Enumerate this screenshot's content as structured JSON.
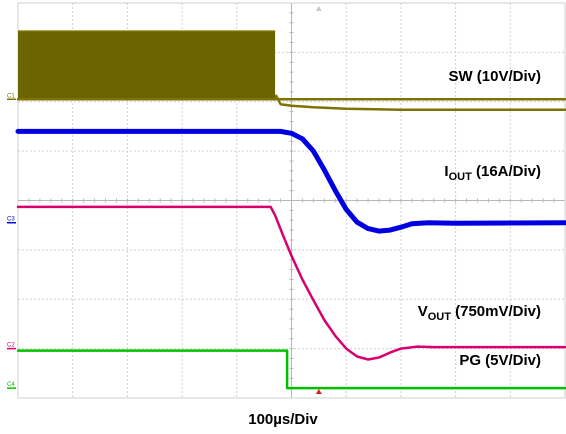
{
  "chart_data": {
    "type": "line",
    "title": "",
    "x_divisions": 10,
    "y_divisions": 8,
    "timebase_label": "100µs/Div",
    "trigger_time_div": 5.5,
    "grid": true,
    "series": [
      {
        "name": "SW (10V/Div)",
        "label_main": "SW (10V/Div)",
        "label_sub": "",
        "label_tail": "",
        "channel_marker": "C1",
        "color": "#7f7300",
        "fill_color": "#6b6400",
        "ground_div": 6.05,
        "points": [
          [
            0,
            6.05
          ],
          [
            10,
            6.05
          ]
        ],
        "switching_band": {
          "x_start": 0,
          "x_end": 4.7,
          "y_low": 6.05,
          "y_high": 7.43
        },
        "decay": [
          [
            4.7,
            6.05
          ],
          [
            4.72,
            6.12
          ],
          [
            4.8,
            5.95
          ],
          [
            5.0,
            5.92
          ],
          [
            5.4,
            5.89
          ],
          [
            6.0,
            5.86
          ],
          [
            7.0,
            5.84
          ],
          [
            10,
            5.84
          ]
        ]
      },
      {
        "name": "IOUT (16A/Div)",
        "label_main": "I",
        "label_sub": "OUT",
        "label_tail": " (16A/Div)",
        "channel_marker": "C3",
        "color": "#0000e0",
        "ground_div": 3.55,
        "points": [
          [
            0,
            5.4
          ],
          [
            4.8,
            5.4
          ],
          [
            5.0,
            5.36
          ],
          [
            5.2,
            5.25
          ],
          [
            5.4,
            5.0
          ],
          [
            5.6,
            4.62
          ],
          [
            5.8,
            4.2
          ],
          [
            6.0,
            3.82
          ],
          [
            6.2,
            3.56
          ],
          [
            6.4,
            3.43
          ],
          [
            6.6,
            3.38
          ],
          [
            6.8,
            3.4
          ],
          [
            7.0,
            3.46
          ],
          [
            7.2,
            3.53
          ],
          [
            7.5,
            3.55
          ],
          [
            8.0,
            3.54
          ],
          [
            10,
            3.55
          ]
        ]
      },
      {
        "name": "VOUT (750mV/Div)",
        "label_main": "V",
        "label_sub": "OUT",
        "label_tail": " (750mV/Div)",
        "channel_marker": "C2",
        "color": "#d80070",
        "ground_div": 1.0,
        "points": [
          [
            0,
            3.87
          ],
          [
            4.62,
            3.87
          ],
          [
            4.7,
            3.7
          ],
          [
            4.85,
            3.28
          ],
          [
            5.0,
            2.88
          ],
          [
            5.2,
            2.4
          ],
          [
            5.4,
            1.98
          ],
          [
            5.6,
            1.58
          ],
          [
            5.8,
            1.26
          ],
          [
            6.0,
            1.0
          ],
          [
            6.2,
            0.84
          ],
          [
            6.4,
            0.78
          ],
          [
            6.6,
            0.82
          ],
          [
            6.8,
            0.92
          ],
          [
            7.0,
            1.0
          ],
          [
            7.3,
            1.04
          ],
          [
            7.6,
            1.03
          ],
          [
            8.0,
            1.03
          ],
          [
            10,
            1.03
          ]
        ]
      },
      {
        "name": "PG (5V/Div)",
        "label_main": "PG (5V/Div)",
        "label_sub": "",
        "label_tail": "",
        "channel_marker": "C4",
        "color": "#00c000",
        "ground_div": 0.2,
        "points": [
          [
            0,
            0.96
          ],
          [
            4.92,
            0.96
          ],
          [
            4.92,
            0.2
          ],
          [
            10,
            0.2
          ]
        ]
      }
    ]
  }
}
